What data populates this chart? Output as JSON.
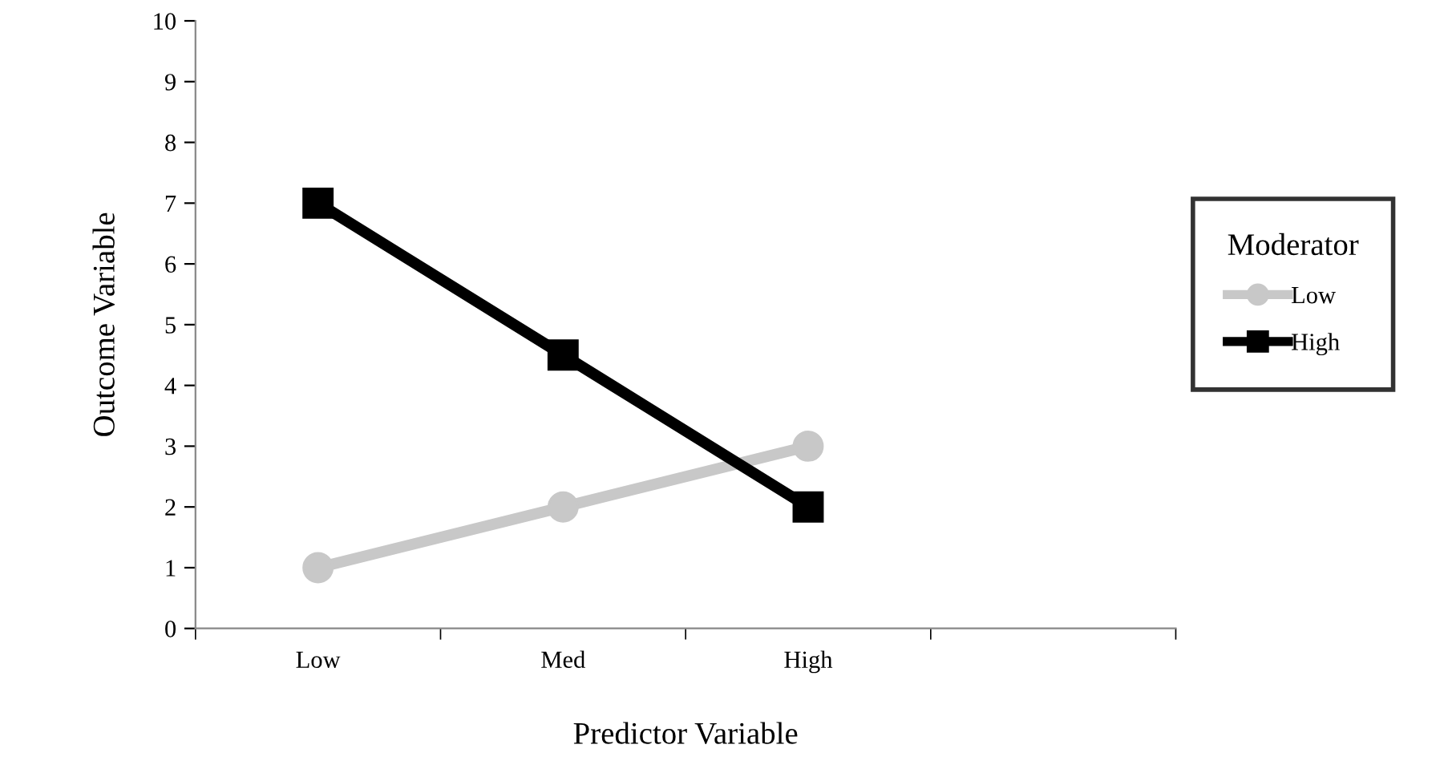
{
  "chart_data": {
    "type": "line",
    "xlabel": "Predictor Variable",
    "ylabel": "Outcome Variable",
    "legend_title": "Moderator",
    "categories": [
      "Low",
      "Med",
      "High",
      null
    ],
    "series": [
      {
        "name": "Low",
        "color": "#c8c8c8",
        "marker": "circle",
        "values": [
          1,
          2,
          3,
          null
        ]
      },
      {
        "name": "High",
        "color": "#000000",
        "marker": "square",
        "values": [
          7,
          4.5,
          2,
          null
        ]
      }
    ],
    "ylim": [
      0,
      10
    ],
    "yticks": [
      0,
      1,
      2,
      3,
      4,
      5,
      6,
      7,
      8,
      9,
      10
    ],
    "grid": false,
    "legend": "right",
    "line_style": "solid"
  }
}
